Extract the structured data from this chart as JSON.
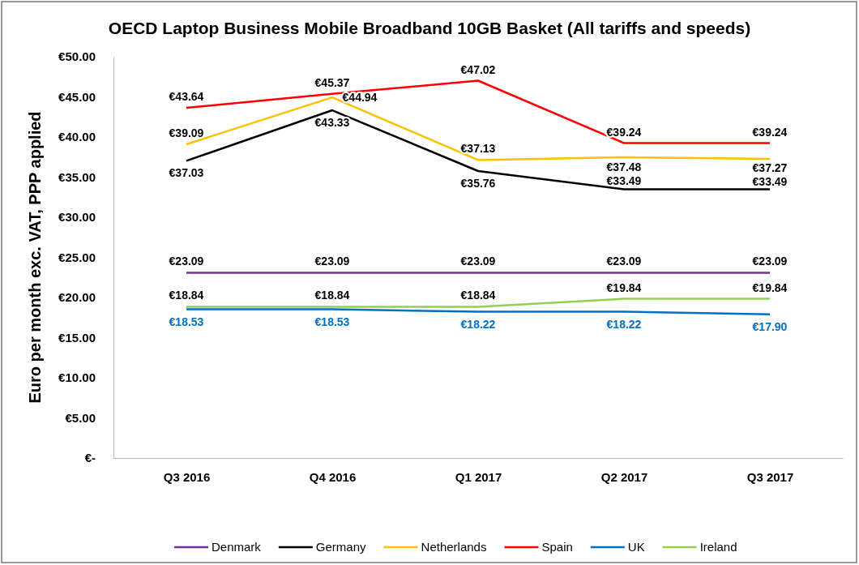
{
  "chart_data": {
    "type": "line",
    "title": "OECD Laptop Business Mobile Broadband 10GB Basket (All tariffs and speeds)",
    "ylabel": "Euro per month exc. VAT, PPP applied",
    "categories": [
      "Q3 2016",
      "Q4 2016",
      "Q1 2017",
      "Q2 2017",
      "Q3 2017"
    ],
    "ylim": [
      0,
      50
    ],
    "yticks": [
      {
        "value": 0,
        "label": "€-"
      },
      {
        "value": 5,
        "label": "€5.00"
      },
      {
        "value": 10,
        "label": "€10.00"
      },
      {
        "value": 15,
        "label": "€15.00"
      },
      {
        "value": 20,
        "label": "€20.00"
      },
      {
        "value": 25,
        "label": "€25.00"
      },
      {
        "value": 30,
        "label": "€30.00"
      },
      {
        "value": 35,
        "label": "€35.00"
      },
      {
        "value": 40,
        "label": "€40.00"
      },
      {
        "value": 45,
        "label": "€45.00"
      },
      {
        "value": 50,
        "label": "€50.00"
      }
    ],
    "grid": false,
    "legend": "bottom",
    "marker": "none",
    "line_style": "solid",
    "series": [
      {
        "name": "Denmark",
        "color": "#7030a0",
        "values": [
          23.09,
          23.09,
          23.09,
          23.09,
          23.09
        ],
        "value_labels": [
          "€23.09",
          "€23.09",
          "€23.09",
          "€23.09",
          "€23.09"
        ]
      },
      {
        "name": "Germany",
        "color": "#000000",
        "values": [
          37.03,
          43.33,
          35.76,
          33.49,
          33.49
        ],
        "value_labels": [
          "€37.03",
          "€43.33",
          "€35.76",
          "€33.49",
          "€33.49"
        ]
      },
      {
        "name": "Netherlands",
        "color": "#ffc000",
        "values": [
          39.09,
          44.94,
          37.13,
          37.48,
          37.27
        ],
        "value_labels": [
          "€39.09",
          "€44.94",
          "€37.13",
          "€37.48",
          "€37.27"
        ]
      },
      {
        "name": "Spain",
        "color": "#ff0000",
        "values": [
          43.64,
          45.37,
          47.02,
          39.24,
          39.24
        ],
        "value_labels": [
          "€43.64",
          "€45.37",
          "€47.02",
          "€39.24",
          "€39.24"
        ]
      },
      {
        "name": "UK",
        "color": "#0070c0",
        "values": [
          18.53,
          18.53,
          18.22,
          18.22,
          17.9
        ],
        "value_labels": [
          "€18.53",
          "€18.53",
          "€18.22",
          "€18.22",
          "€17.90"
        ]
      },
      {
        "name": "Ireland",
        "color": "#92d050",
        "values": [
          18.84,
          18.84,
          18.84,
          19.84,
          19.84
        ],
        "value_labels": [
          "€18.84",
          "€18.84",
          "€18.84",
          "€19.84",
          "€19.84"
        ]
      }
    ]
  }
}
